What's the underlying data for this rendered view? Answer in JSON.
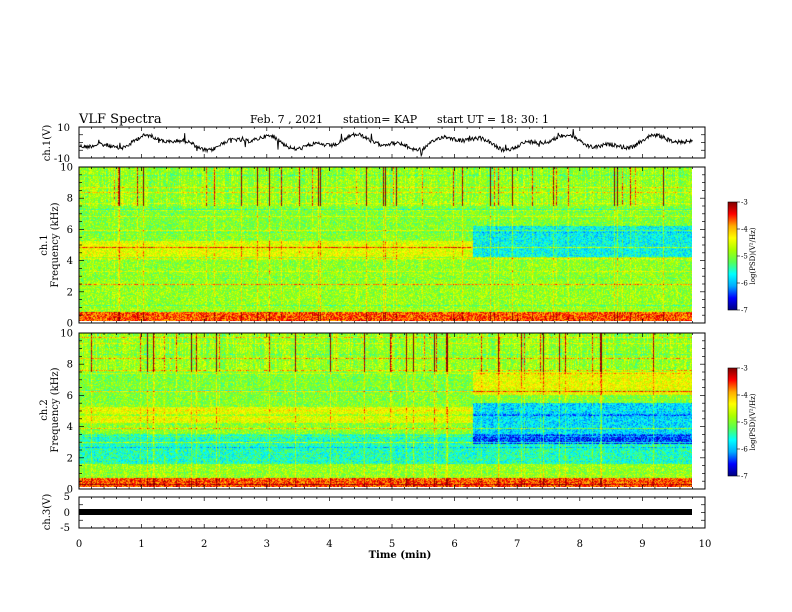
{
  "header": {
    "title": "VLF Spectra",
    "date": "Feb. 7 , 2021",
    "station": "station= KAP",
    "start": "start  UT =   18: 30: 1"
  },
  "chart_data": [
    {
      "type": "line",
      "name": "ch1-waveform",
      "ylabel": "ch.1(V)",
      "ylim": [
        -10,
        10
      ],
      "yticks": [
        "10",
        "-10"
      ],
      "x_range_min": [
        0,
        10
      ],
      "data_end_min": 9.8
    },
    {
      "type": "heatmap",
      "name": "ch1-spectrogram",
      "ylabel": "ch.1\nFrequency (kHz)",
      "ylabel_lines": [
        "ch.1",
        "Frequency (kHz)"
      ],
      "ylim": [
        0,
        10
      ],
      "yticks": [
        "0",
        "2",
        "4",
        "6",
        "8",
        "10"
      ],
      "colorbar": {
        "label": "log(PSD)(V²/Hz)",
        "range": [
          -7,
          -3
        ],
        "ticks": [
          "-3",
          "-4",
          "-5",
          "-6",
          "-7"
        ]
      }
    },
    {
      "type": "heatmap",
      "name": "ch2-spectrogram",
      "ylabel_lines": [
        "ch.2",
        "Frequency (kHz)"
      ],
      "ylim": [
        0,
        10
      ],
      "yticks": [
        "0",
        "2",
        "4",
        "6",
        "8",
        "10"
      ],
      "colorbar": {
        "label": "log(PSD)(V²/Hz)",
        "range": [
          -7,
          -3
        ],
        "ticks": [
          "-3",
          "-4",
          "-5",
          "-6",
          "-7"
        ]
      }
    },
    {
      "type": "line",
      "name": "ch3-waveform",
      "ylabel": "ch.3(V)",
      "ylim": [
        -5,
        5
      ],
      "yticks": [
        "5",
        "0",
        "-5"
      ],
      "xlabel": "Time  (min)",
      "xticks": [
        "0",
        "1",
        "2",
        "3",
        "4",
        "5",
        "6",
        "7",
        "8",
        "9",
        "10"
      ],
      "xlim": [
        0,
        10
      ]
    }
  ],
  "colors": {
    "colormap": [
      "#00007f",
      "#0000ff",
      "#00aaff",
      "#00ffff",
      "#55ff55",
      "#aaff00",
      "#ffff00",
      "#ffaa00",
      "#ff0000",
      "#7f0000"
    ]
  }
}
